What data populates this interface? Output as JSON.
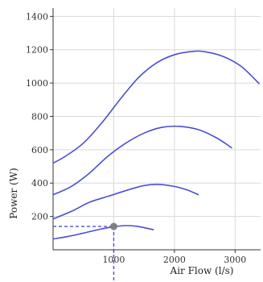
{
  "chart_data": {
    "type": "line",
    "title": "",
    "xlabel": "Air Flow (l/s)",
    "ylabel": "Power (W)",
    "xlim": [
      0,
      3420
    ],
    "ylim": [
      0,
      1450
    ],
    "grid": true,
    "x_ticks": [
      1000,
      2000,
      3000
    ],
    "y_ticks": [
      200,
      400,
      600,
      800,
      1000,
      1200,
      1400
    ],
    "series": [
      {
        "x": [
          0,
          200,
          500,
          800,
          1100,
          1400,
          1700,
          2000,
          2300,
          2500,
          2800,
          3100,
          3400
        ],
        "y": [
          520,
          560,
          640,
          760,
          900,
          1030,
          1120,
          1170,
          1190,
          1188,
          1160,
          1100,
          995
        ]
      },
      {
        "x": [
          0,
          300,
          600,
          900,
          1200,
          1500,
          1800,
          2100,
          2400,
          2700,
          2950
        ],
        "y": [
          330,
          380,
          460,
          560,
          640,
          700,
          735,
          740,
          720,
          670,
          610
        ]
      },
      {
        "x": [
          0,
          300,
          600,
          900,
          1200,
          1500,
          1750,
          2000,
          2200,
          2400
        ],
        "y": [
          185,
          230,
          285,
          320,
          355,
          385,
          392,
          380,
          360,
          330
        ]
      },
      {
        "x": [
          0,
          250,
          500,
          800,
          1000,
          1200,
          1400,
          1660
        ],
        "y": [
          65,
          80,
          100,
          125,
          138,
          145,
          140,
          120
        ]
      }
    ],
    "highlight_point": {
      "x": 1000,
      "y": 140
    },
    "colors": {
      "series": "#4a4fd6",
      "marker": "#808080",
      "grid": "#d9d9d9"
    }
  }
}
